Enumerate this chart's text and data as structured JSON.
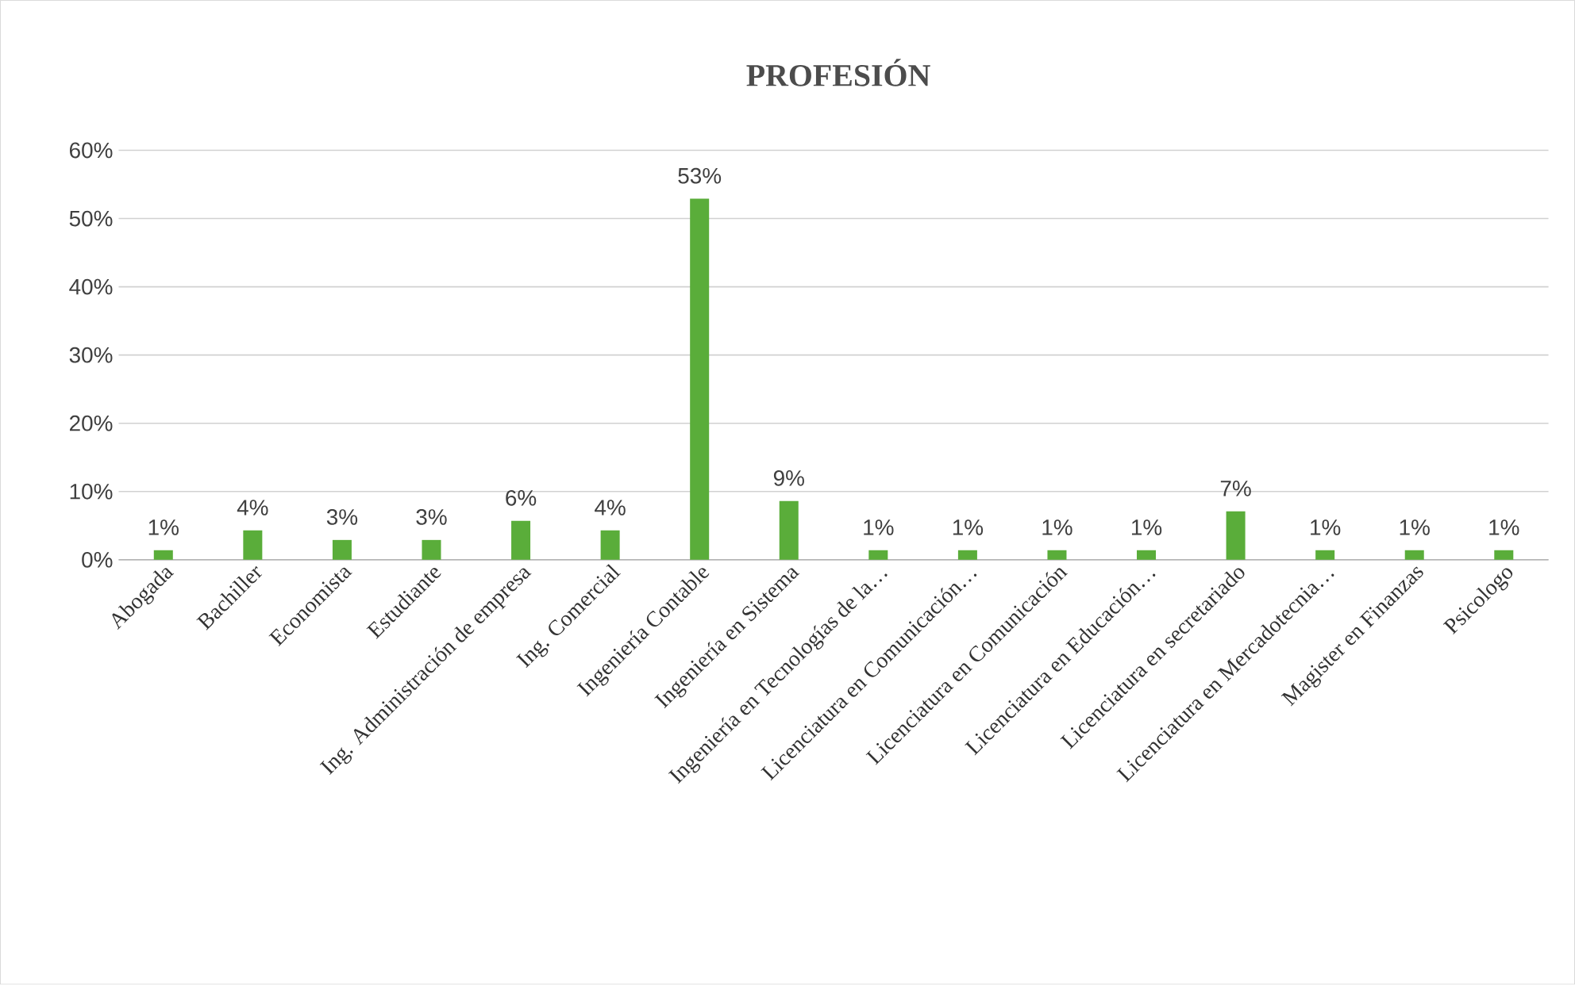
{
  "chart_data": {
    "type": "bar",
    "title": "PROFESIÓN",
    "categories": [
      "Abogada",
      "Bachiller",
      "Economista",
      "Estudiante",
      "Ing. Administración de empresa",
      "Ing. Comercial",
      "Ingeniería Contable",
      "Ingeniería en Sistema",
      "Ingeniería en Tecnologías de la…",
      "Licenciatura en Comunicación…",
      "Licenciatura en Comunicación",
      "Licenciatura en Educación…",
      "Licenciatura en secretariado",
      "Licenciatura en Mercadotecnia…",
      "Magister en Finanzas",
      "Psicologo"
    ],
    "values": [
      1.4,
      4.3,
      2.9,
      2.9,
      5.7,
      4.3,
      52.9,
      8.6,
      1.4,
      1.4,
      1.4,
      1.4,
      7.1,
      1.4,
      1.4,
      1.4
    ],
    "value_labels": [
      "1%",
      "4%",
      "3%",
      "3%",
      "6%",
      "4%",
      "53%",
      "9%",
      "1%",
      "1%",
      "1%",
      "1%",
      "7%",
      "1%",
      "1%",
      "1%"
    ],
    "color": "#5aad3a",
    "ylim": [
      0,
      60
    ],
    "yticks": [
      {
        "value": 0,
        "label": "0%"
      },
      {
        "value": 10,
        "label": "10%"
      },
      {
        "value": 20,
        "label": "20%"
      },
      {
        "value": 30,
        "label": "30%"
      },
      {
        "value": 40,
        "label": "40%"
      },
      {
        "value": 50,
        "label": "50%"
      },
      {
        "value": 60,
        "label": "60%"
      }
    ],
    "grid": "y"
  }
}
